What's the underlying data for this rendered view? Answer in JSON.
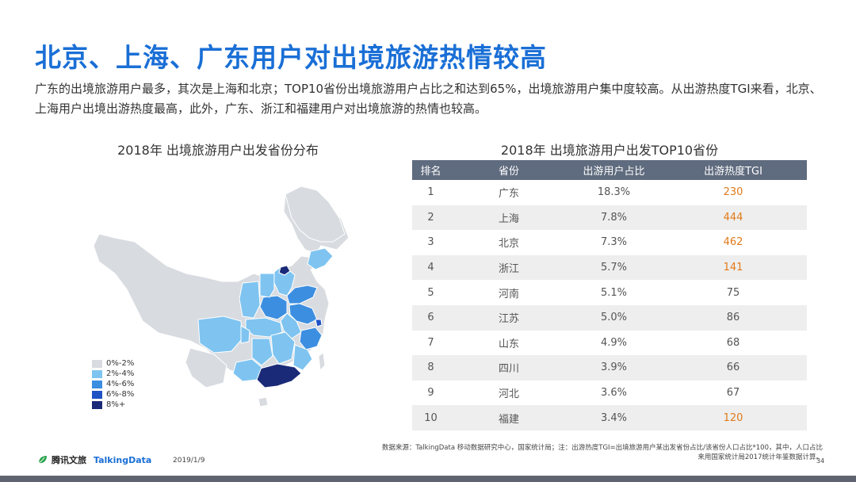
{
  "header": {
    "title": "北京、上海、广东用户对出境旅游热情较高",
    "intro": "广东的出境旅游用户最多，其次是上海和北京；TOP10省份出境旅游用户占比之和达到65%，出境旅游用户集中度较高。从出游热度TGI来看，北京、上海用户出境出游热度最高，此外，广东、浙江和福建用户对出境旅游的热情也较高。"
  },
  "map": {
    "title": "2018年 出境旅游用户出发省份分布",
    "legend": [
      {
        "label": "0%-2%",
        "color": "#d8dbe0"
      },
      {
        "label": "2%-4%",
        "color": "#7fc4f0"
      },
      {
        "label": "4%-6%",
        "color": "#3c8ee0"
      },
      {
        "label": "6%-8%",
        "color": "#1f52c4"
      },
      {
        "label": "8%+",
        "color": "#1a2a78"
      }
    ]
  },
  "table": {
    "title": "2018年 出境旅游用户出发TOP10省份",
    "headers": [
      "排名",
      "省份",
      "出游用户占比",
      "出游热度TGI"
    ],
    "rows": [
      {
        "rank": "1",
        "province": "广东",
        "share": "18.3%",
        "tgi": "230"
      },
      {
        "rank": "2",
        "province": "上海",
        "share": "7.8%",
        "tgi": "444"
      },
      {
        "rank": "3",
        "province": "北京",
        "share": "7.3%",
        "tgi": "462"
      },
      {
        "rank": "4",
        "province": "浙江",
        "share": "5.7%",
        "tgi": "141"
      },
      {
        "rank": "5",
        "province": "河南",
        "share": "5.1%",
        "tgi": "75"
      },
      {
        "rank": "6",
        "province": "江苏",
        "share": "5.0%",
        "tgi": "86"
      },
      {
        "rank": "7",
        "province": "山东",
        "share": "4.9%",
        "tgi": "68"
      },
      {
        "rank": "8",
        "province": "四川",
        "share": "3.9%",
        "tgi": "66"
      },
      {
        "rank": "9",
        "province": "河北",
        "share": "3.6%",
        "tgi": "67"
      },
      {
        "rank": "10",
        "province": "福建",
        "share": "3.4%",
        "tgi": "120"
      }
    ],
    "highlight_color": "#e07b1a"
  },
  "footer": {
    "source_line1": "数据来源：TalkingData 移动数据研究中心，国家统计局；注：出游热度TGI=出境旅游用户某出发省份占比/该省份人口占比*100，其中，人口占比",
    "source_line2": "来用国家统计局2017统计年鉴数据计算。",
    "page_number": "34",
    "logo_tencent": "腾讯文旅",
    "logo_talkingdata": "TalkingData",
    "date": "2019/1/9"
  }
}
